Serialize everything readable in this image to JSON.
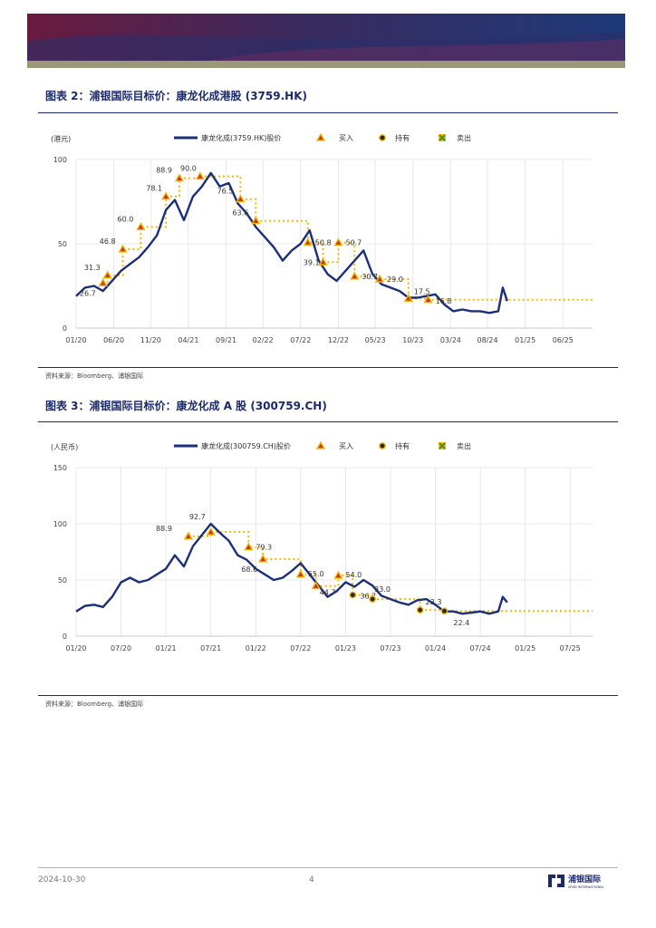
{
  "footer": {
    "date": "2024-10-30",
    "page": "4",
    "logo_name": "浦银国际",
    "logo_sub": "SPDB INTERNATIONAL"
  },
  "charts": [
    {
      "id": "c1",
      "fig_title": "图表 2：浦银国际目标价：康龙化成港股 (3759.HK)",
      "unit_label": "(港元)",
      "source": "资料来源：Bloomberg、浦银国际",
      "legend": {
        "price": "康龙化成(3759.HK)股价",
        "buy": "买入",
        "hold": "持有",
        "sell": "卖出"
      }
    },
    {
      "id": "c2",
      "fig_title": "图表 3：浦银国际目标价：康龙化成 A 股 (300759.CH)",
      "unit_label": "(人民币)",
      "source": "资料来源：Bloomberg、浦银国际",
      "legend": {
        "price": "康龙化成(300759.CH)股价",
        "buy": "买入",
        "hold": "持有",
        "sell": "卖出"
      }
    }
  ],
  "chart_data": [
    {
      "type": "line",
      "title": "浦银国际目标价：康龙化成港股 (3759.HK)",
      "ylabel": "(港元)",
      "ylim": [
        0,
        100
      ],
      "yticks": [
        0,
        50,
        100
      ],
      "xlim": [
        2020.0,
        2025.75
      ],
      "xticks": [
        {
          "label": "01/20",
          "x": 2020.0
        },
        {
          "label": "06/20",
          "x": 2020.42
        },
        {
          "label": "11/20",
          "x": 2020.83
        },
        {
          "label": "04/21",
          "x": 2021.25
        },
        {
          "label": "09/21",
          "x": 2021.67
        },
        {
          "label": "02/22",
          "x": 2022.08
        },
        {
          "label": "07/22",
          "x": 2022.5
        },
        {
          "label": "12/22",
          "x": 2022.92
        },
        {
          "label": "05/23",
          "x": 2023.33
        },
        {
          "label": "10/23",
          "x": 2023.75
        },
        {
          "label": "03/24",
          "x": 2024.17
        },
        {
          "label": "08/24",
          "x": 2024.58
        },
        {
          "label": "01/25",
          "x": 2025.0
        },
        {
          "label": "06/25",
          "x": 2025.42
        }
      ],
      "price_series": {
        "name": "康龙化成(3759.HK)股价",
        "x": [
          2020.0,
          2020.1,
          2020.2,
          2020.3,
          2020.4,
          2020.5,
          2020.6,
          2020.7,
          2020.8,
          2020.9,
          2021.0,
          2021.1,
          2021.2,
          2021.3,
          2021.4,
          2021.5,
          2021.6,
          2021.7,
          2021.8,
          2021.9,
          2022.0,
          2022.1,
          2022.2,
          2022.3,
          2022.4,
          2022.5,
          2022.6,
          2022.7,
          2022.8,
          2022.9,
          2023.0,
          2023.1,
          2023.2,
          2023.3,
          2023.4,
          2023.5,
          2023.6,
          2023.7,
          2023.8,
          2023.9,
          2024.0,
          2024.1,
          2024.2,
          2024.3,
          2024.4,
          2024.5,
          2024.6,
          2024.7,
          2024.75,
          2024.8
        ],
        "values": [
          19,
          24,
          25,
          22,
          28,
          34,
          38,
          42,
          48,
          55,
          70,
          76,
          64,
          78,
          84,
          92,
          84,
          86,
          74,
          68,
          60,
          54,
          48,
          40,
          46,
          50,
          58,
          40,
          32,
          28,
          34,
          40,
          46,
          32,
          26,
          24,
          22,
          18,
          18,
          19,
          20,
          14,
          10,
          11,
          10,
          10,
          9,
          10,
          24,
          16
        ]
      },
      "target_series": {
        "name": "目标价",
        "x": [
          2020.3,
          2020.35,
          2020.52,
          2020.72,
          2021.0,
          2021.15,
          2021.38,
          2021.83,
          2022.0,
          2022.1,
          2022.58,
          2022.75,
          2022.92,
          2023.1,
          2023.38,
          2023.7,
          2023.92,
          2024.08,
          2025.75
        ],
        "values": [
          26.7,
          31.3,
          46.8,
          60.0,
          78.1,
          88.9,
          90.0,
          76.5,
          63.6,
          63.6,
          50.8,
          39.1,
          50.7,
          30.7,
          29.0,
          17.5,
          16.8,
          16.8,
          16.8
        ]
      },
      "markers": [
        {
          "x": 2020.3,
          "value": 26.7,
          "label": "26.7",
          "rating": "买入"
        },
        {
          "x": 2020.35,
          "value": 31.3,
          "label": "31.3",
          "rating": "买入"
        },
        {
          "x": 2020.52,
          "value": 46.8,
          "label": "46.8",
          "rating": "买入"
        },
        {
          "x": 2020.72,
          "value": 60.0,
          "label": "60.0",
          "rating": "买入"
        },
        {
          "x": 2021.0,
          "value": 78.1,
          "label": "78.1",
          "rating": "买入"
        },
        {
          "x": 2021.15,
          "value": 88.9,
          "label": "88.9",
          "rating": "买入"
        },
        {
          "x": 2021.38,
          "value": 90.0,
          "label": "90.0",
          "rating": "买入"
        },
        {
          "x": 2021.83,
          "value": 76.5,
          "label": "76.5",
          "rating": "买入"
        },
        {
          "x": 2022.0,
          "value": 63.6,
          "label": "63.6",
          "rating": "买入"
        },
        {
          "x": 2022.58,
          "value": 50.8,
          "label": "50.8",
          "rating": "买入"
        },
        {
          "x": 2022.75,
          "value": 39.1,
          "label": "39.1",
          "rating": "买入"
        },
        {
          "x": 2022.92,
          "value": 50.7,
          "label": "50.7",
          "rating": "买入"
        },
        {
          "x": 2023.1,
          "value": 30.7,
          "label": "30.7",
          "rating": "买入"
        },
        {
          "x": 2023.38,
          "value": 29.0,
          "label": "29.0",
          "rating": "买入"
        },
        {
          "x": 2023.7,
          "value": 17.5,
          "label": "17.5",
          "rating": "买入"
        },
        {
          "x": 2023.92,
          "value": 16.8,
          "label": "16.8",
          "rating": "买入"
        }
      ],
      "legend_position": "top"
    },
    {
      "type": "line",
      "title": "浦银国际目标价：康龙化成 A 股 (300759.CH)",
      "ylabel": "(人民币)",
      "ylim": [
        0,
        150
      ],
      "yticks": [
        0,
        50,
        100,
        150
      ],
      "xlim": [
        2020.0,
        2025.75
      ],
      "xticks": [
        {
          "label": "01/20",
          "x": 2020.0
        },
        {
          "label": "07/20",
          "x": 2020.5
        },
        {
          "label": "01/21",
          "x": 2021.0
        },
        {
          "label": "07/21",
          "x": 2021.5
        },
        {
          "label": "01/22",
          "x": 2022.0
        },
        {
          "label": "07/22",
          "x": 2022.5
        },
        {
          "label": "01/23",
          "x": 2023.0
        },
        {
          "label": "07/23",
          "x": 2023.5
        },
        {
          "label": "01/24",
          "x": 2024.0
        },
        {
          "label": "07/24",
          "x": 2024.5
        },
        {
          "label": "01/25",
          "x": 2025.0
        },
        {
          "label": "07/25",
          "x": 2025.5
        }
      ],
      "price_series": {
        "name": "康龙化成(300759.CH)股价",
        "x": [
          2020.0,
          2020.1,
          2020.2,
          2020.3,
          2020.4,
          2020.5,
          2020.6,
          2020.7,
          2020.8,
          2020.9,
          2021.0,
          2021.1,
          2021.2,
          2021.3,
          2021.4,
          2021.5,
          2021.6,
          2021.7,
          2021.8,
          2021.9,
          2022.0,
          2022.1,
          2022.2,
          2022.3,
          2022.4,
          2022.5,
          2022.6,
          2022.7,
          2022.8,
          2022.9,
          2023.0,
          2023.1,
          2023.2,
          2023.3,
          2023.4,
          2023.5,
          2023.6,
          2023.7,
          2023.8,
          2023.9,
          2024.0,
          2024.1,
          2024.2,
          2024.3,
          2024.4,
          2024.5,
          2024.6,
          2024.7,
          2024.75,
          2024.8
        ],
        "values": [
          22,
          27,
          28,
          26,
          35,
          48,
          52,
          48,
          50,
          55,
          60,
          72,
          62,
          80,
          90,
          100,
          92,
          85,
          72,
          68,
          60,
          55,
          50,
          52,
          58,
          65,
          55,
          45,
          35,
          40,
          48,
          44,
          50,
          45,
          36,
          33,
          30,
          28,
          32,
          33,
          28,
          22,
          22,
          20,
          21,
          22,
          20,
          22,
          35,
          30
        ]
      },
      "target_series": {
        "name": "目标价",
        "x": [
          2021.25,
          2021.5,
          2021.92,
          2022.08,
          2022.25,
          2022.5,
          2022.67,
          2022.92,
          2023.08,
          2023.3,
          2023.83,
          2024.1,
          2024.33,
          2025.75
        ],
        "values": [
          88.9,
          92.7,
          79.3,
          68.6,
          68.6,
          55.0,
          44.7,
          54.0,
          36.7,
          33.0,
          23.3,
          22.4,
          22.4,
          22.4
        ]
      },
      "markers": [
        {
          "x": 2021.25,
          "value": 88.9,
          "label": "88.9",
          "rating": "买入"
        },
        {
          "x": 2021.5,
          "value": 92.7,
          "label": "92.7",
          "rating": "买入"
        },
        {
          "x": 2021.92,
          "value": 79.3,
          "label": "79.3",
          "rating": "买入"
        },
        {
          "x": 2022.08,
          "value": 68.6,
          "label": "68.6",
          "rating": "买入"
        },
        {
          "x": 2022.5,
          "value": 55.0,
          "label": "55.0",
          "rating": "买入"
        },
        {
          "x": 2022.67,
          "value": 44.7,
          "label": "44.7",
          "rating": "买入"
        },
        {
          "x": 2022.92,
          "value": 54.0,
          "label": "54.0",
          "rating": "买入"
        },
        {
          "x": 2023.08,
          "value": 36.7,
          "label": "36.7",
          "rating": "持有"
        },
        {
          "x": 2023.3,
          "value": 33.0,
          "label": "33.0",
          "rating": "持有"
        },
        {
          "x": 2023.83,
          "value": 23.3,
          "label": "23.3",
          "rating": "持有"
        },
        {
          "x": 2024.1,
          "value": 22.4,
          "label": "22.4",
          "rating": "持有"
        }
      ],
      "legend_position": "top"
    }
  ]
}
